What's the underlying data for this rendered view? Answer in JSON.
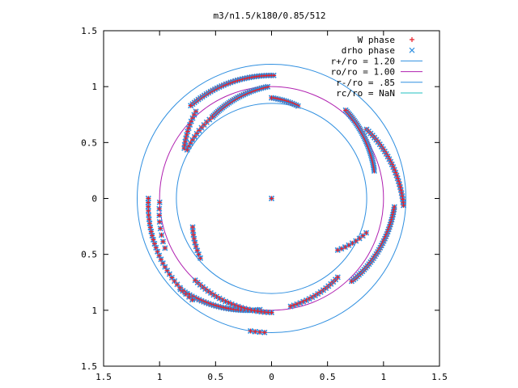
{
  "chart_data": {
    "type": "scatter",
    "title": "m3/n1.5/k180/0.85/512",
    "xlabel": "",
    "ylabel": "",
    "xlim": [
      -1.5,
      1.5
    ],
    "ylim": [
      -1.5,
      1.5
    ],
    "x_ticks": [
      {
        "value": -1.5,
        "label": "1.5"
      },
      {
        "value": -1.0,
        "label": "1"
      },
      {
        "value": -0.5,
        "label": "0.5"
      },
      {
        "value": 0,
        "label": "0"
      },
      {
        "value": 0.5,
        "label": "0.5"
      },
      {
        "value": 1.0,
        "label": "1"
      },
      {
        "value": 1.5,
        "label": "1.5"
      }
    ],
    "y_ticks": [
      {
        "value": 1.5,
        "label": "1.5"
      },
      {
        "value": 1.0,
        "label": "1"
      },
      {
        "value": 0.5,
        "label": "0.5"
      },
      {
        "value": 0,
        "label": "0"
      },
      {
        "value": -0.5,
        "label": "0.5"
      },
      {
        "value": -1.0,
        "label": "1"
      },
      {
        "value": -1.5,
        "label": "1.5"
      }
    ],
    "grid": false,
    "legend_position": "top-right",
    "legend": [
      {
        "label": "W phase",
        "marker": "+",
        "color": "#e8202a"
      },
      {
        "label": "drho phase",
        "marker": "x",
        "color": "#2f8fe0"
      },
      {
        "label": "r+/ro = 1.20",
        "marker": "line",
        "color": "#2f8fe0"
      },
      {
        "label": "ro/ro = 1.00",
        "marker": "line",
        "color": "#b020b0"
      },
      {
        "label": "r-/ro = .85",
        "marker": "line",
        "color": "#2f8fe0"
      },
      {
        "label": "rc/ro = NaN",
        "marker": "line",
        "color": "#20c0c0"
      }
    ],
    "circles": [
      {
        "name": "r+/ro = 1.20",
        "r": 1.2,
        "color": "#2f8fe0"
      },
      {
        "name": "ro/ro = 1.00",
        "r": 1.0,
        "color": "#b020b0"
      },
      {
        "name": "r-/ro = .85",
        "r": 0.85,
        "color": "#2f8fe0"
      }
    ],
    "arcs": [
      {
        "r_start": 1.1,
        "r_end": 1.1,
        "theta_start": 89,
        "theta_end": 131,
        "n": 38
      },
      {
        "r_start": 1.03,
        "r_end": 0.9,
        "theta_start": 131,
        "theta_end": 150,
        "n": 12
      },
      {
        "r_start": 1.0,
        "r_end": 0.9,
        "theta_start": 92,
        "theta_end": 126,
        "n": 32
      },
      {
        "r_start": 0.9,
        "r_end": 0.87,
        "theta_start": 126,
        "theta_end": 150,
        "n": 12
      },
      {
        "r_start": 0.86,
        "r_end": 0.9,
        "theta_start": 74,
        "theta_end": 90,
        "n": 14
      },
      {
        "r_start": 0.95,
        "r_end": 1.03,
        "theta_start": 15,
        "theta_end": 50,
        "n": 38
      },
      {
        "r_start": 1.05,
        "r_end": 1.18,
        "theta_start": 36,
        "theta_end": -3,
        "n": 30
      },
      {
        "r_start": 1.1,
        "r_end": 1.03,
        "theta_start": -4,
        "theta_end": -46,
        "n": 36
      },
      {
        "r_start": 0.9,
        "r_end": 0.75,
        "theta_start": -20,
        "theta_end": -38,
        "n": 9
      },
      {
        "r_start": 0.98,
        "r_end": 0.92,
        "theta_start": -80,
        "theta_end": -50,
        "n": 18
      },
      {
        "r_start": 1.0,
        "r_end": 1.15,
        "theta_start": -96,
        "theta_end": -135,
        "n": 34
      },
      {
        "r_start": 1.15,
        "r_end": 1.1,
        "theta_start": -128,
        "theta_end": -180,
        "n": 28
      },
      {
        "r_start": 1.0,
        "r_end": 1.05,
        "theta_start": -178,
        "theta_end": -155,
        "n": 8
      },
      {
        "r_start": 1.02,
        "r_end": 1.0,
        "theta_start": -90,
        "theta_end": -133,
        "n": 26
      },
      {
        "r_start": 0.83,
        "r_end": 0.75,
        "theta_start": -140,
        "theta_end": -160,
        "n": 9
      },
      {
        "r_start": 1.2,
        "r_end": 1.2,
        "theta_start": -93,
        "theta_end": -99,
        "n": 4
      },
      {
        "r_start": 0.0,
        "r_end": 0.0,
        "theta_start": 0,
        "theta_end": 0,
        "n": 1
      }
    ]
  }
}
